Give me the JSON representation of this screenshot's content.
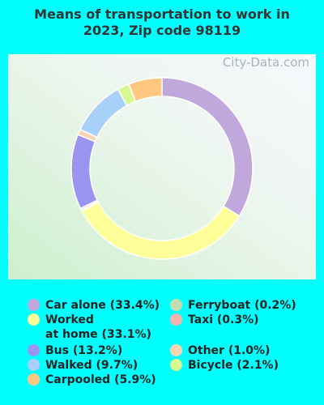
{
  "chart_data": {
    "type": "donut",
    "title": "Means of transportation to work in\n2023, Zip code 98119",
    "watermark": "City-Data.com",
    "categories": [
      "Car alone",
      "Worked at home",
      "Ferryboat",
      "Taxi",
      "Bus",
      "Other",
      "Walked",
      "Bicycle",
      "Carpooled"
    ],
    "values": [
      33.4,
      33.1,
      0.2,
      0.3,
      13.2,
      1.0,
      9.7,
      2.1,
      5.9
    ],
    "legend_labels": [
      "Car alone (33.4%)",
      "Worked\nat home (33.1%)",
      "Ferryboat (0.2%)",
      "Taxi (0.3%)",
      "Bus (13.2%)",
      "Other (1.0%)",
      "Walked (9.7%)",
      "Bicycle (2.1%)",
      "Carpooled (5.9%)"
    ],
    "colors": [
      "#c0a8dc",
      "#ffff99",
      "#c4dcb0",
      "#f4b4ac",
      "#9a96f0",
      "#fcd4b4",
      "#a8d0f8",
      "#d8f890",
      "#ffc880"
    ]
  }
}
